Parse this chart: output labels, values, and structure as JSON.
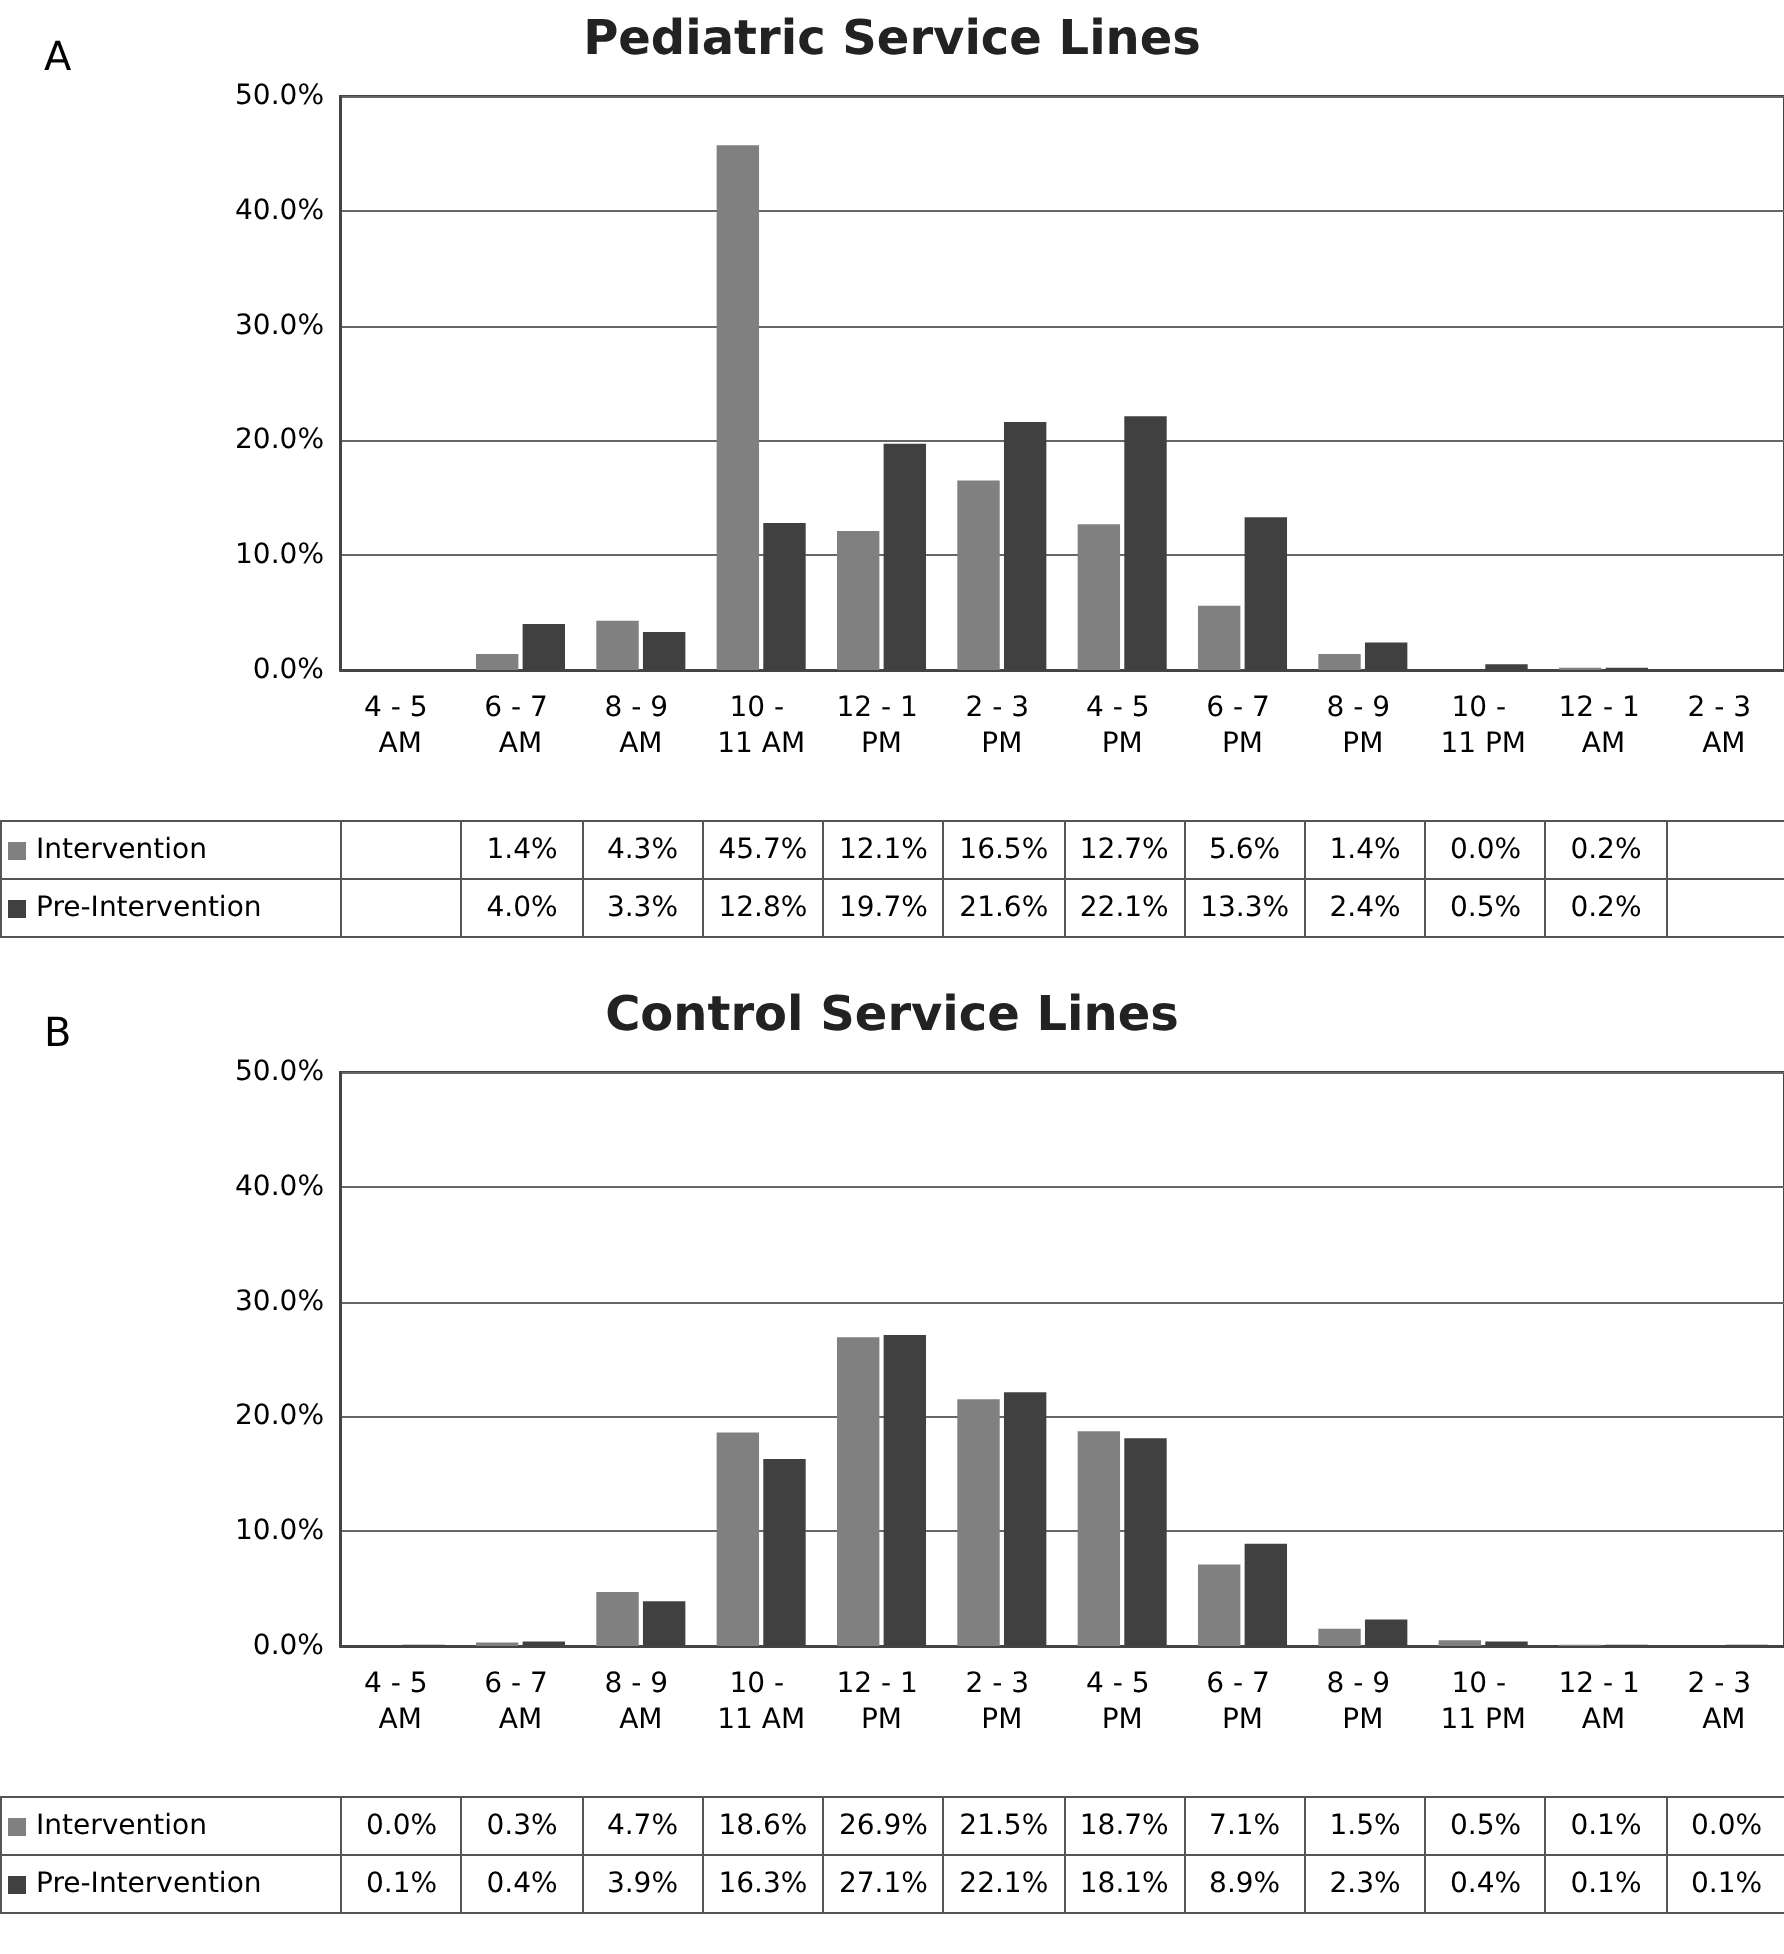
{
  "chart_data": [
    {
      "type": "bar",
      "title": "Pediatric Service Lines",
      "annotations": [
        "A"
      ],
      "categories": [
        "4 - 5 AM",
        "6 - 7 AM",
        "8 - 9 AM",
        "10 - 11 AM",
        "12 - 1 PM",
        "2 - 3 PM",
        "4 - 5 PM",
        "6 - 7 PM",
        "8 - 9 PM",
        "10 - 11 PM",
        "12 - 1 AM",
        "2 - 3 AM"
      ],
      "series": [
        {
          "name": "Intervention",
          "color": "#808080",
          "values": [
            null,
            1.4,
            4.3,
            45.7,
            12.1,
            16.5,
            12.7,
            5.6,
            1.4,
            0.0,
            0.2,
            null
          ],
          "value_labels": [
            null,
            "1.4%",
            "4.3%",
            "45.7%",
            "12.1%",
            "16.5%",
            "12.7%",
            "5.6%",
            "1.4%",
            "0.0%",
            "0.2%",
            null
          ]
        },
        {
          "name": "Pre-Intervention",
          "color": "#404040",
          "values": [
            null,
            4.0,
            3.3,
            12.8,
            19.7,
            21.6,
            22.1,
            13.3,
            2.4,
            0.5,
            0.2,
            null
          ],
          "value_labels": [
            null,
            "4.0%",
            "3.3%",
            "12.8%",
            "19.7%",
            "21.6%",
            "22.1%",
            "13.3%",
            "2.4%",
            "0.5%",
            "0.2%",
            null
          ]
        }
      ],
      "ylim": [
        0,
        50
      ],
      "yticks": [
        {
          "value": 0,
          "label": "0.0%"
        },
        {
          "value": 10,
          "label": "10.0%"
        },
        {
          "value": 20,
          "label": "20.0%"
        },
        {
          "value": 30,
          "label": "30.0%"
        },
        {
          "value": 40,
          "label": "40.0%"
        },
        {
          "value": 50,
          "label": "50.0%"
        }
      ],
      "grid": "y",
      "legend": "bottom"
    },
    {
      "type": "bar",
      "title": "Control Service Lines",
      "annotations": [
        "B"
      ],
      "categories": [
        "4 - 5 AM",
        "6 - 7 AM",
        "8 - 9 AM",
        "10 - 11 AM",
        "12 - 1 PM",
        "2 - 3 PM",
        "4 - 5 PM",
        "6 - 7 PM",
        "8 - 9 PM",
        "10 - 11 PM",
        "12 - 1 AM",
        "2 - 3 AM"
      ],
      "series": [
        {
          "name": "Intervention",
          "color": "#808080",
          "values": [
            0.0,
            0.3,
            4.7,
            18.6,
            26.9,
            21.5,
            18.7,
            7.1,
            1.5,
            0.5,
            0.1,
            0.0
          ],
          "value_labels": [
            "0.0%",
            "0.3%",
            "4.7%",
            "18.6%",
            "26.9%",
            "21.5%",
            "18.7%",
            "7.1%",
            "1.5%",
            "0.5%",
            "0.1%",
            "0.0%"
          ]
        },
        {
          "name": "Pre-Intervention",
          "color": "#404040",
          "values": [
            0.1,
            0.4,
            3.9,
            16.3,
            27.1,
            22.1,
            18.1,
            8.9,
            2.3,
            0.4,
            0.1,
            0.1
          ],
          "value_labels": [
            "0.1%",
            "0.4%",
            "3.9%",
            "16.3%",
            "27.1%",
            "22.1%",
            "18.1%",
            "8.9%",
            "2.3%",
            "0.4%",
            "0.1%",
            "0.1%"
          ]
        }
      ],
      "ylim": [
        0,
        50
      ],
      "yticks": [
        {
          "value": 0,
          "label": "0.0%"
        },
        {
          "value": 10,
          "label": "10.0%"
        },
        {
          "value": 20,
          "label": "20.0%"
        },
        {
          "value": 30,
          "label": "30.0%"
        },
        {
          "value": 40,
          "label": "40.0%"
        },
        {
          "value": 50,
          "label": "50.0%"
        }
      ],
      "grid": "y",
      "legend": "bottom"
    }
  ]
}
